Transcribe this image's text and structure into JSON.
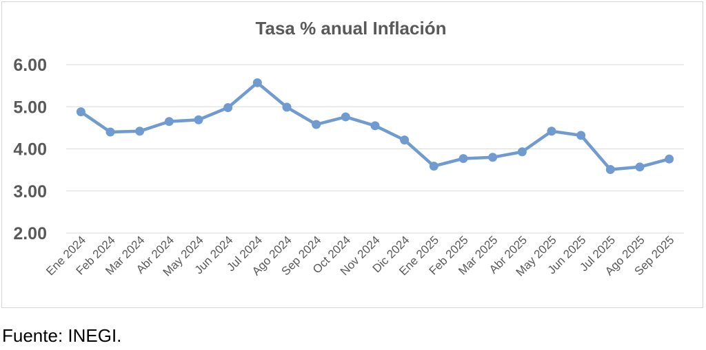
{
  "chart_data": {
    "type": "line",
    "title": "Tasa % anual Inflación",
    "xlabel": "",
    "ylabel": "",
    "categories": [
      "Ene 2024",
      "Feb 2024",
      "Mar 2024",
      "Abr 2024",
      "May 2024",
      "Jun 2024",
      "Jul 2024",
      "Ago 2024",
      "Sep 2024",
      "Oct 2024",
      "Nov 2024",
      "Dic 2024",
      "Ene 2025",
      "Feb 2025",
      "Mar 2025",
      "Abr 2025",
      "May 2025",
      "Jun 2025",
      "Jul 2025",
      "Ago 2025",
      "Sep 2025"
    ],
    "series": [
      {
        "name": "",
        "color": "#6f9bd1",
        "values": [
          4.88,
          4.4,
          4.42,
          4.65,
          4.69,
          4.98,
          5.57,
          4.99,
          4.58,
          4.76,
          4.55,
          4.21,
          3.59,
          3.77,
          3.8,
          3.93,
          4.42,
          4.32,
          3.51,
          3.57,
          3.76
        ]
      }
    ],
    "ylim": [
      2.0,
      6.0
    ],
    "yticks": [
      "2.00",
      "3.00",
      "4.00",
      "5.00",
      "6.00"
    ],
    "grid": true,
    "legend": "none"
  },
  "source": "Fuente: INEGI."
}
